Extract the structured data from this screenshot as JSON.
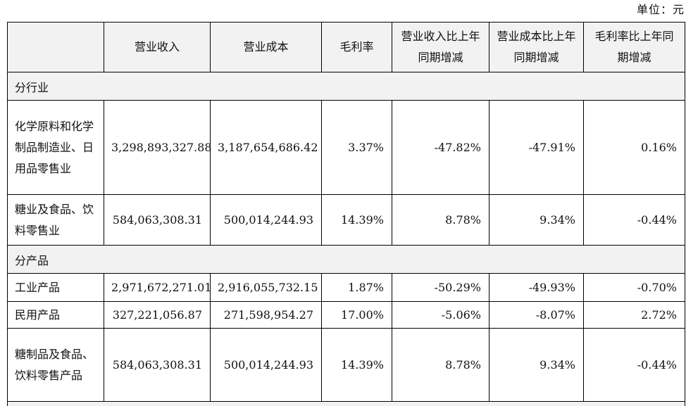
{
  "unit_label": "单位：元",
  "headers": {
    "h0": "",
    "h1": "营业收入",
    "h2": "营业成本",
    "h3": "毛利率",
    "h4": "营业收入比上年同期增减",
    "h5": "营业成本比上年同期增减",
    "h6": "毛利率比上年同期增减"
  },
  "section_industry": "分行业",
  "section_product": "分产品",
  "rows": [
    {
      "name": "化学原料和化学制品制造业、日用品零售业",
      "revenue": "3,298,893,327.88",
      "cost": "3,187,654,686.42",
      "margin": "3.37%",
      "rev_change": "-47.82%",
      "cost_change": "-47.91%",
      "margin_change": "0.16%"
    },
    {
      "name": "糖业及食品、饮料零售业",
      "revenue": "584,063,308.31",
      "cost": "500,014,244.93",
      "margin": "14.39%",
      "rev_change": "8.78%",
      "cost_change": "9.34%",
      "margin_change": "-0.44%"
    },
    {
      "name": "工业产品",
      "revenue": "2,971,672,271.01",
      "cost": "2,916,055,732.15",
      "margin": "1.87%",
      "rev_change": "-50.29%",
      "cost_change": "-49.93%",
      "margin_change": "-0.70%"
    },
    {
      "name": "民用产品",
      "revenue": "327,221,056.87",
      "cost": "271,598,954.27",
      "margin": "17.00%",
      "rev_change": "-5.06%",
      "cost_change": "-8.07%",
      "margin_change": "2.72%"
    },
    {
      "name": "糖制品及食品、饮料零售产品",
      "revenue": "584,063,308.31",
      "cost": "500,014,244.93",
      "margin": "14.39%",
      "rev_change": "8.78%",
      "cost_change": "9.34%",
      "margin_change": "-0.44%"
    }
  ]
}
